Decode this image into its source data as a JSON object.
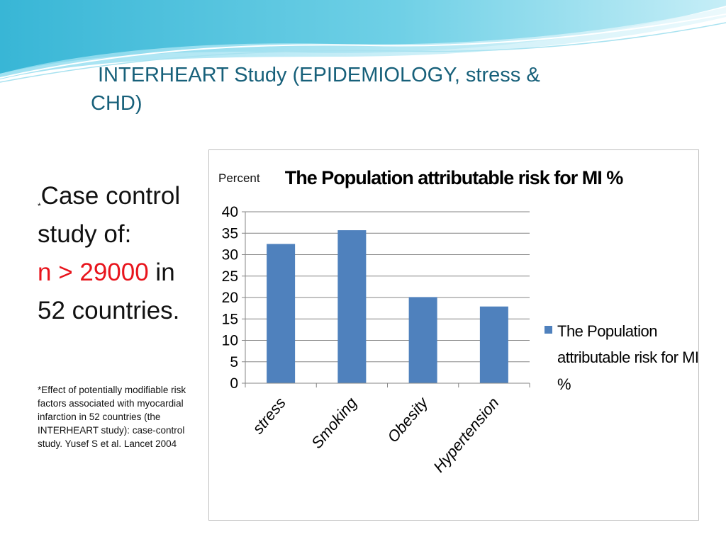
{
  "slide": {
    "title_line1": "INTERHEART Study (EPIDEMIOLOGY, stress &",
    "title_line2": "CHD)",
    "title_color": "#17607a",
    "body": {
      "asterisk": "*",
      "line1": "Case control",
      "line2": "study of:",
      "line3_prefix": "n > 29000",
      "line3_suffix": " in",
      "line4": "52 countries.",
      "highlight_color": "#e8141c"
    },
    "footnote": "*Effect of potentially modifiable risk factors associated with myocardial infarction in 52 countries (the INTERHEART study): case-control study. Yusef S  et al. Lancet 2004"
  },
  "chart_data": {
    "type": "bar",
    "title": "The Population attributable risk for MI %",
    "ylabel": "Percent",
    "xlabel": "",
    "categories": [
      "stress",
      "Smoking",
      "Obesity",
      "Hypertension"
    ],
    "series": [
      {
        "name": "The Population attributable risk for MI %",
        "values": [
          32.5,
          35.7,
          20.1,
          17.9
        ],
        "color": "#4f81bd"
      }
    ],
    "ylim": [
      0,
      40
    ],
    "yticks": [
      0,
      5,
      10,
      15,
      20,
      25,
      30,
      35,
      40
    ],
    "grid": true,
    "legend_position": "right",
    "legend_lines": [
      "The Population",
      "attributable risk for MI",
      "%"
    ]
  }
}
